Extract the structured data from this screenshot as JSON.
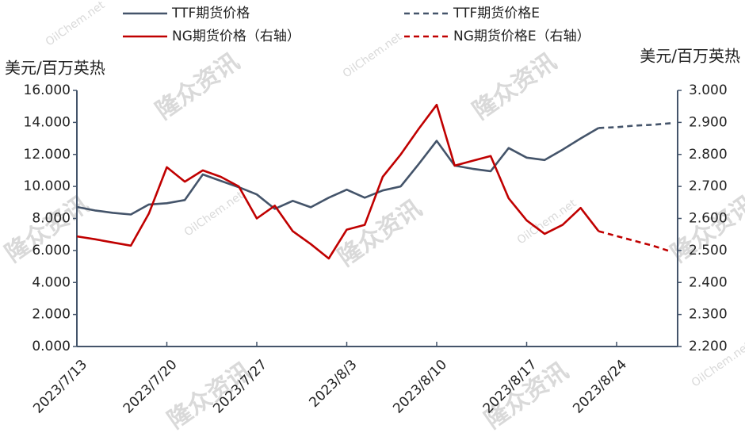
{
  "chart_data": {
    "type": "line",
    "y_label": "美元/百万英热",
    "y2_label": "美元/百万英热",
    "watermark": {
      "text": "隆众资讯",
      "site": "OilChem.net"
    },
    "categories": [
      "2023/7/13",
      null,
      null,
      null,
      null,
      "2023/7/20",
      null,
      null,
      null,
      null,
      "2023/7/27",
      null,
      null,
      null,
      null,
      "2023/8/3",
      null,
      null,
      null,
      null,
      "2023/8/10",
      null,
      null,
      null,
      null,
      "2023/8/17",
      null,
      null,
      null,
      null,
      "2023/8/24",
      null,
      null,
      null
    ],
    "series": [
      {
        "name": "TTF期货价格",
        "color": "#44546a",
        "dash": false,
        "axis": "y",
        "values": [
          8.72,
          8.5,
          8.35,
          8.25,
          8.87,
          8.95,
          9.15,
          10.75,
          10.35,
          9.95,
          9.5,
          8.6,
          9.1,
          8.7,
          9.3,
          9.8,
          9.3,
          9.75,
          10.0,
          11.4,
          12.85,
          11.3,
          11.1,
          10.95,
          12.4,
          11.8,
          11.65,
          12.3,
          13.0,
          13.65,
          null,
          null,
          null,
          null
        ]
      },
      {
        "name": "TTF期货价格E",
        "color": "#44546a",
        "dash": true,
        "axis": "y",
        "values": [
          null,
          null,
          null,
          null,
          null,
          null,
          null,
          null,
          null,
          null,
          null,
          null,
          null,
          null,
          null,
          null,
          null,
          null,
          null,
          null,
          null,
          null,
          null,
          null,
          null,
          null,
          null,
          null,
          null,
          13.65,
          13.7,
          13.8,
          13.85,
          13.95
        ]
      },
      {
        "name": "NG期货价格（右轴）",
        "color": "#c00000",
        "dash": false,
        "axis": "y2",
        "values": [
          2.544,
          2.535,
          2.525,
          2.515,
          2.615,
          2.76,
          2.715,
          2.75,
          2.73,
          2.7,
          2.6,
          2.64,
          2.56,
          2.52,
          2.475,
          2.565,
          2.58,
          2.73,
          2.8,
          2.88,
          2.955,
          2.765,
          2.78,
          2.795,
          2.663,
          2.594,
          2.552,
          2.58,
          2.633,
          2.56,
          null,
          null,
          null,
          null
        ]
      },
      {
        "name": "NG期货价格E（右轴）",
        "color": "#c00000",
        "dash": true,
        "axis": "y2",
        "values": [
          null,
          null,
          null,
          null,
          null,
          null,
          null,
          null,
          null,
          null,
          null,
          null,
          null,
          null,
          null,
          null,
          null,
          null,
          null,
          null,
          null,
          null,
          null,
          null,
          null,
          null,
          null,
          null,
          null,
          2.56,
          2.545,
          2.53,
          2.515,
          2.497
        ]
      }
    ],
    "ylim": [
      0,
      16
    ],
    "yticks": [
      {
        "value": 0,
        "label": "0.000"
      },
      {
        "value": 2,
        "label": "2.000"
      },
      {
        "value": 4,
        "label": "4.000"
      },
      {
        "value": 6,
        "label": "6.000"
      },
      {
        "value": 8,
        "label": "8.000"
      },
      {
        "value": 10,
        "label": "10.000"
      },
      {
        "value": 12,
        "label": "12.000"
      },
      {
        "value": 14,
        "label": "14.000"
      },
      {
        "value": 16,
        "label": "16.000"
      }
    ],
    "y2lim": [
      2.2,
      3.0
    ],
    "y2ticks": [
      {
        "value": 2.2,
        "label": "2.200"
      },
      {
        "value": 2.3,
        "label": "2.300"
      },
      {
        "value": 2.4,
        "label": "2.400"
      },
      {
        "value": 2.5,
        "label": "2.500"
      },
      {
        "value": 2.6,
        "label": "2.600"
      },
      {
        "value": 2.7,
        "label": "2.700"
      },
      {
        "value": 2.8,
        "label": "2.800"
      },
      {
        "value": 2.9,
        "label": "2.900"
      },
      {
        "value": 3.0,
        "label": "3.000"
      }
    ],
    "grid": false,
    "legend": "top"
  }
}
